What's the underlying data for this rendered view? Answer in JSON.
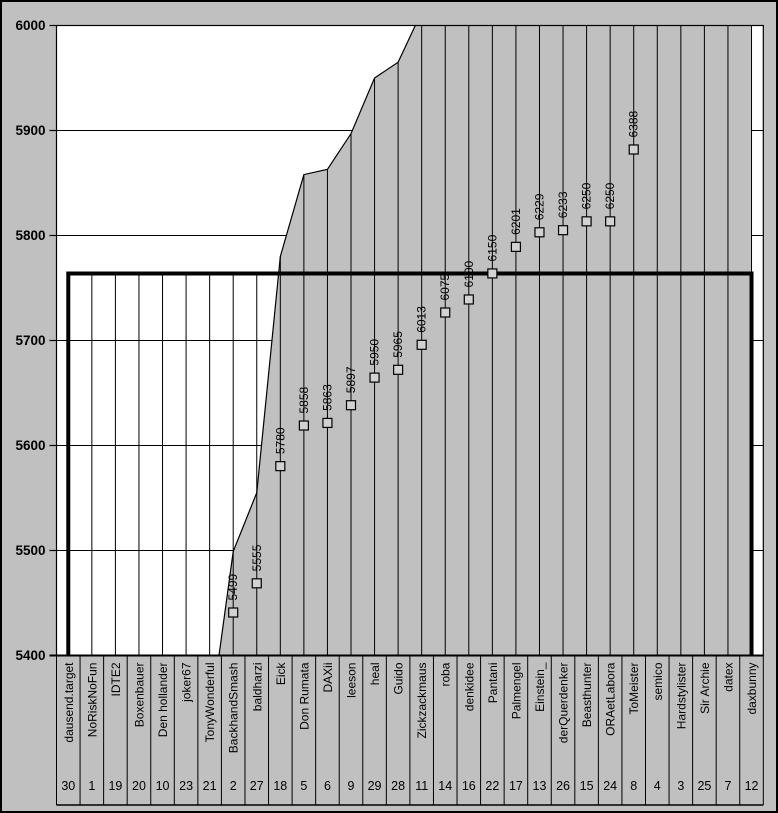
{
  "chart_data": {
    "type": "area",
    "title": "",
    "y_axis": {
      "min": 5400,
      "max": 6000,
      "step": 100,
      "tick_labels": [
        "6000",
        "5900",
        "5800",
        "5700",
        "5600",
        "5500",
        "5400"
      ]
    },
    "x_axis": {
      "level1": "player names (rotated 90°)",
      "level2": "rank numbers"
    },
    "players": [
      {
        "name": "dausend.target",
        "rank": "30",
        "guess": null
      },
      {
        "name": "NoRiskNoFun",
        "rank": "1",
        "guess": null
      },
      {
        "name": "IDTE2",
        "rank": "19",
        "guess": null
      },
      {
        "name": "Boxenbauer",
        "rank": "20",
        "guess": null
      },
      {
        "name": "Den hollander",
        "rank": "10",
        "guess": null
      },
      {
        "name": "joker67",
        "rank": "23",
        "guess": null
      },
      {
        "name": "TonyWonderful",
        "rank": "21",
        "guess": null
      },
      {
        "name": "BackhandSmash",
        "rank": "2",
        "guess": 5499
      },
      {
        "name": "baldharzi",
        "rank": "27",
        "guess": 5555
      },
      {
        "name": "Eick",
        "rank": "18",
        "guess": 5780
      },
      {
        "name": "Don Rumata",
        "rank": "5",
        "guess": 5858
      },
      {
        "name": "DAXii",
        "rank": "6",
        "guess": 5863
      },
      {
        "name": "leeson",
        "rank": "9",
        "guess": 5897
      },
      {
        "name": "heal",
        "rank": "29",
        "guess": 5950
      },
      {
        "name": "Guido",
        "rank": "28",
        "guess": 5965
      },
      {
        "name": "Zickzackmaus",
        "rank": "11",
        "guess": 6013
      },
      {
        "name": "roba",
        "rank": "14",
        "guess": 6075
      },
      {
        "name": "denkidee",
        "rank": "16",
        "guess": 6100
      },
      {
        "name": "Pantani",
        "rank": "22",
        "guess": 6150
      },
      {
        "name": "Palmengel",
        "rank": "17",
        "guess": 6201
      },
      {
        "name": "Einstein_",
        "rank": "13",
        "guess": 6229
      },
      {
        "name": "derQuerdenker",
        "rank": "26",
        "guess": 6233
      },
      {
        "name": "Beasthunter",
        "rank": "15",
        "guess": 6250
      },
      {
        "name": "ORAetLabora",
        "rank": "24",
        "guess": 6250
      },
      {
        "name": "ToMeister",
        "rank": "8",
        "guess": 6388
      },
      {
        "name": "semico",
        "rank": "4",
        "guess": null
      },
      {
        "name": "Hardstylister",
        "rank": "3",
        "guess": null
      },
      {
        "name": "Sir Archie",
        "rank": "25",
        "guess": null
      },
      {
        "name": "datex",
        "rank": "7",
        "guess": null
      },
      {
        "name": "daxbunny",
        "rank": "12",
        "guess": null
      }
    ],
    "area_series": {
      "note": "gray area height = guess value on primary axis, clipped at 5400 and 6000; players left of BackhandSmash are below 5400, players from Zickzackmaus on exceed 6000",
      "fill": "#c0c0c0"
    },
    "marker_series": {
      "note": "square markers with rotated value labels, plotted on hidden secondary scale",
      "labels": [
        "5499",
        "5555",
        "5780",
        "5858",
        "5863",
        "5897",
        "5950",
        "5965",
        "6013",
        "6075",
        "6100",
        "6150",
        "6201",
        "6229",
        "6233",
        "6250",
        "6250",
        "6388"
      ]
    },
    "target_line": {
      "secondary_value": 6150,
      "style": "thick-black-open-rectangle"
    },
    "colors": {
      "background": "#c0c0c0",
      "plot_background": "#ffffff",
      "area_fill": "#c0c0c0",
      "marker_fill": "#d2d2d2",
      "line": "#000000"
    }
  }
}
